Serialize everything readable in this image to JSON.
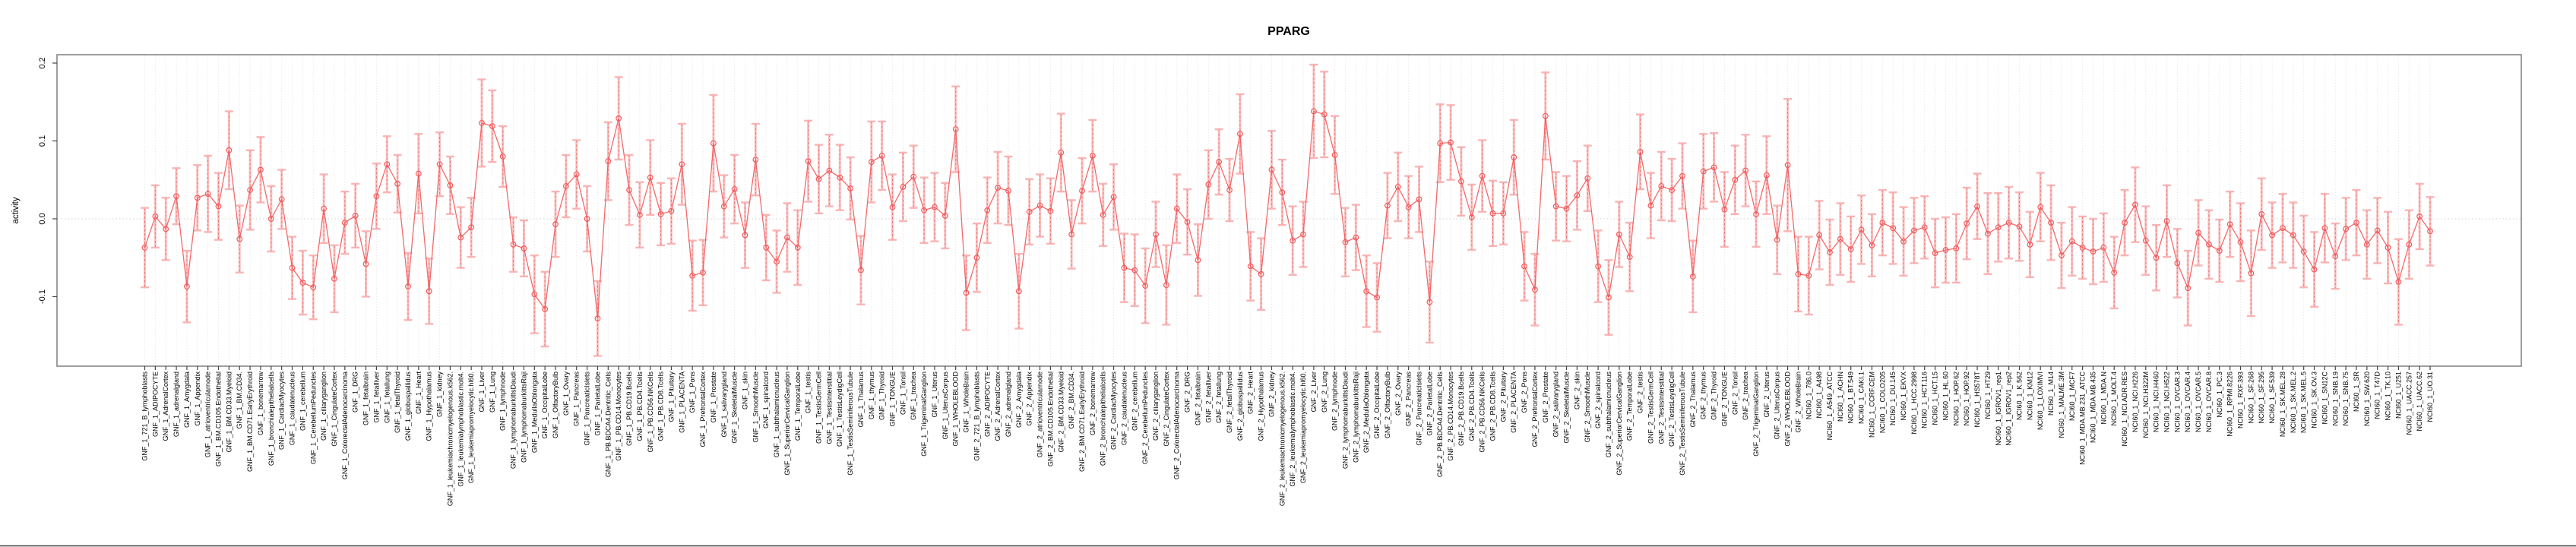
{
  "chart_data": {
    "type": "line",
    "title": "PPARG",
    "ylabel": "activity",
    "xlabel": "",
    "legend": "none",
    "grid": {
      "vertical_dotted_per_category": true,
      "dotted_zero_line": true
    },
    "marker": "open-circle",
    "error_bars": true,
    "ylim": [
      -0.189,
      0.211
    ],
    "yticks": [
      "-0.1",
      "0.0",
      "0.1",
      "0.2"
    ],
    "ytick_values": [
      -0.1,
      0.0,
      0.1,
      0.2
    ],
    "colors": {
      "series": "#f2595b",
      "error_bar": "#f9b1b1",
      "error_dash": "#ee6b6b",
      "grid": "#dcdcdc",
      "zero_line": "#d0d0d0",
      "box": "#858585",
      "tick": "#444444",
      "text": "#000000",
      "background": "#ffffff"
    },
    "label_groups": [
      {
        "prefix": "GNF_1_",
        "source": "gnf_tissues"
      },
      {
        "prefix": "GNF_2_",
        "source": "gnf_tissues"
      },
      {
        "prefix": "NCI60_1_",
        "source": "nci60_lines"
      }
    ],
    "gnf_tissues": [
      "721_B_lymphoblasts",
      "ADIPOCYTE",
      "AdrenalCortex",
      "adrenalgland",
      "Amygdala",
      "Appendix",
      "atrioventricularnode",
      "BM.CD105.Endothelial",
      "BM.CD33.Myeloid",
      "BM.CD34.",
      "BM.CD71.EarlyErythroid",
      "bonemarrow",
      "bronchialepithelialcells",
      "CardiacMyocytes",
      "caudatenucleus",
      "cerebellum",
      "CerebellumPeduncles",
      "ciliaryganglion",
      "CingulateCortex",
      "ColorectalAdenocarcinoma",
      "DRG",
      "fetalbrain",
      "fetalliver",
      "fetallung",
      "fetalThyroid",
      "globuspallidus",
      "Heart",
      "Hypothalamus",
      "kidney",
      "leukemiachronicmyelogenous.k562.",
      "leukemialymphoblastic.molt4.",
      "leukemiapromyelocytic.hl60.",
      "Liver",
      "Lung",
      "lymphnode",
      "lymphomaburkittsDaudi",
      "lymphomaburkittsRaji",
      "MedullaOblongata",
      "OccipitalLobe",
      "OlfactoryBulb",
      "Ovary",
      "Pancreas",
      "PancreaticIslets",
      "ParietalLobe",
      "PB.BDCA4.Dentritic_Cells",
      "PB.CD14.Monocytes",
      "PB.CD19.Bcells",
      "PB.CD4.Tcells",
      "PB.CD56.NKCells",
      "PB.CD8.Tcells",
      "Pituitary",
      "PLACENTA",
      "Pons",
      "PrefrontalCortex",
      "Prostate",
      "salivarygland",
      "SkeletalMuscle",
      "skin",
      "SmoothMuscle",
      "spinalcord",
      "subthalamicnucleus",
      "SuperiorCervicalGanglion",
      "TemporalLobe",
      "testis",
      "TestisGermCell",
      "TestisInterstitial",
      "TestisLeydigCell",
      "TestisSeminiferousTubule",
      "Thalamus",
      "thymus",
      "Thyroid",
      "TONGUE",
      "Tonsil",
      "trachea",
      "TrigeminalGanglion",
      "Uterus",
      "UterusCorpus",
      "WHOLEBLOOD",
      "WholeBrain"
    ],
    "nci60_lines": [
      "786.0",
      "A498",
      "A549_ATCC",
      "ACHN",
      "BT.549",
      "CAKI.1",
      "CCRF.CEM",
      "COLO205",
      "DU.145",
      "EKVX",
      "HCC.2998",
      "HCT.116",
      "HCT.15",
      "HL.60",
      "HOP.62",
      "HOP.92",
      "HS578T",
      "HT29",
      "IGROV1_rep1",
      "IGROV1_rep2",
      "K.562",
      "KM12",
      "LOXIMVI",
      "M14",
      "MALME.3M",
      "MCF7",
      "MDA.MB.231_ATCC",
      "MDA.MB.435",
      "MDA.N",
      "MOLT.4",
      "NCI.ADR.RES",
      "NCI.H226",
      "NCI.H322M",
      "NCI.H460",
      "NCI.H522",
      "OVCAR.3",
      "OVCAR.4",
      "OVCAR.5",
      "OVCAR.8",
      "PC.3",
      "RPMI.8226",
      "RXF.393",
      "SF.268",
      "SF.295",
      "SF.539",
      "SK.MEL.28",
      "SK.MEL.2",
      "SK.MEL.5",
      "SK.OV.3",
      "SN12C",
      "SNB.19",
      "SNB.75",
      "SR",
      "SW.620",
      "T47D",
      "TK.10",
      "U251",
      "UACC.257",
      "UACC.62",
      "UO.31"
    ],
    "values": [
      -0.037,
      0.003,
      -0.013,
      0.029,
      -0.087,
      0.027,
      0.032,
      0.016,
      0.088,
      -0.026,
      0.037,
      0.063,
      0.0,
      0.025,
      -0.063,
      -0.082,
      -0.088,
      0.013,
      -0.077,
      -0.005,
      0.004,
      -0.058,
      0.029,
      0.07,
      0.045,
      -0.087,
      0.058,
      -0.093,
      0.07,
      0.043,
      -0.024,
      -0.011,
      0.123,
      0.119,
      0.08,
      -0.033,
      -0.038,
      -0.097,
      -0.116,
      -0.007,
      0.042,
      0.057,
      0.0,
      -0.128,
      0.074,
      0.129,
      0.037,
      0.005,
      0.053,
      0.006,
      0.01,
      0.07,
      -0.073,
      -0.069,
      0.097,
      0.016,
      0.038,
      -0.021,
      0.076,
      -0.037,
      -0.055,
      -0.024,
      -0.037,
      0.074,
      0.051,
      0.062,
      0.053,
      0.039,
      -0.066,
      0.073,
      0.081,
      0.015,
      0.041,
      0.054,
      0.011,
      0.015,
      0.004,
      0.115,
      -0.095,
      -0.05,
      0.011,
      0.04,
      0.036,
      -0.093,
      0.009,
      0.017,
      0.01,
      0.085,
      -0.02,
      0.036,
      0.081,
      0.005,
      0.028,
      -0.063,
      -0.066,
      -0.086,
      -0.02,
      -0.085,
      0.013,
      -0.004,
      -0.053,
      0.044,
      0.073,
      0.037,
      0.109,
      -0.061,
      -0.071,
      0.063,
      0.034,
      -0.028,
      -0.02,
      0.138,
      0.134,
      0.082,
      -0.03,
      -0.024,
      -0.093,
      -0.101,
      0.017,
      0.041,
      0.015,
      0.025,
      -0.107,
      0.097,
      0.098,
      0.048,
      0.002,
      0.055,
      0.007,
      0.007,
      0.079,
      -0.061,
      -0.091,
      0.132,
      0.016,
      0.013,
      0.03,
      0.052,
      -0.061,
      -0.101,
      -0.02,
      -0.049,
      0.086,
      0.017,
      0.042,
      0.037,
      0.055,
      -0.074,
      0.061,
      0.066,
      0.012,
      0.05,
      0.062,
      0.006,
      0.056,
      -0.027,
      0.069,
      -0.071,
      -0.073,
      -0.021,
      -0.043,
      -0.026,
      -0.039,
      -0.014,
      -0.034,
      -0.005,
      -0.012,
      -0.029,
      -0.015,
      -0.011,
      -0.044,
      -0.04,
      -0.038,
      -0.006,
      0.016,
      -0.019,
      -0.011,
      -0.005,
      -0.01,
      -0.033,
      0.015,
      -0.005,
      -0.047,
      -0.029,
      -0.037,
      -0.042,
      -0.037,
      -0.069,
      -0.005,
      0.018,
      -0.028,
      -0.05,
      -0.003,
      -0.057,
      -0.089,
      -0.018,
      -0.033,
      -0.041,
      -0.007,
      -0.03,
      -0.07,
      0.006,
      -0.021,
      -0.012,
      -0.021,
      -0.042,
      -0.065,
      -0.012,
      -0.048,
      -0.013,
      -0.005,
      -0.033,
      -0.015,
      -0.037,
      -0.081,
      -0.033,
      0.003,
      -0.016
    ],
    "se": [
      0.051,
      0.04,
      0.04,
      0.036,
      0.046,
      0.042,
      0.049,
      0.043,
      0.05,
      0.043,
      0.051,
      0.042,
      0.042,
      0.038,
      0.04,
      0.041,
      0.041,
      0.044,
      0.043,
      0.04,
      0.041,
      0.042,
      0.042,
      0.036,
      0.037,
      0.043,
      0.051,
      0.042,
      0.041,
      0.037,
      0.039,
      0.038,
      0.056,
      0.046,
      0.039,
      0.035,
      0.036,
      0.05,
      0.048,
      0.042,
      0.04,
      0.044,
      0.042,
      0.048,
      0.05,
      0.053,
      0.045,
      0.042,
      0.048,
      0.04,
      0.042,
      0.052,
      0.045,
      0.042,
      0.062,
      0.04,
      0.044,
      0.042,
      0.046,
      0.042,
      0.04,
      0.044,
      0.048,
      0.052,
      0.044,
      0.046,
      0.042,
      0.04,
      0.044,
      0.052,
      0.044,
      0.042,
      0.044,
      0.04,
      0.042,
      0.044,
      0.042,
      0.055,
      0.048,
      0.044,
      0.042,
      0.046,
      0.044,
      0.048,
      0.042,
      0.04,
      0.042,
      0.05,
      0.044,
      0.042,
      0.046,
      0.04,
      0.042,
      0.044,
      0.046,
      0.048,
      0.042,
      0.051,
      0.044,
      0.042,
      0.046,
      0.044,
      0.042,
      0.04,
      0.051,
      0.044,
      0.046,
      0.05,
      0.042,
      0.044,
      0.042,
      0.06,
      0.055,
      0.05,
      0.044,
      0.042,
      0.046,
      0.044,
      0.042,
      0.044,
      0.04,
      0.042,
      0.052,
      0.05,
      0.048,
      0.044,
      0.042,
      0.046,
      0.042,
      0.04,
      0.048,
      0.044,
      0.046,
      0.056,
      0.044,
      0.042,
      0.044,
      0.042,
      0.046,
      0.048,
      0.042,
      0.044,
      0.048,
      0.042,
      0.044,
      0.04,
      0.042,
      0.046,
      0.048,
      0.044,
      0.048,
      0.044,
      0.046,
      0.042,
      0.05,
      0.044,
      0.085,
      0.048,
      0.05,
      0.044,
      0.042,
      0.046,
      0.042,
      0.044,
      0.04,
      0.042,
      0.046,
      0.044,
      0.042,
      0.04,
      0.044,
      0.042,
      0.044,
      0.046,
      0.042,
      0.052,
      0.044,
      0.046,
      0.044,
      0.042,
      0.044,
      0.048,
      0.042,
      0.044,
      0.04,
      0.042,
      0.044,
      0.046,
      0.042,
      0.048,
      0.044,
      0.042,
      0.046,
      0.044,
      0.048,
      0.042,
      0.044,
      0.04,
      0.042,
      0.05,
      0.055,
      0.046,
      0.042,
      0.044,
      0.042,
      0.046,
      0.048,
      0.044,
      0.042,
      0.04,
      0.042,
      0.044,
      0.042,
      0.046,
      0.055,
      0.044,
      0.042,
      0.044
    ]
  }
}
